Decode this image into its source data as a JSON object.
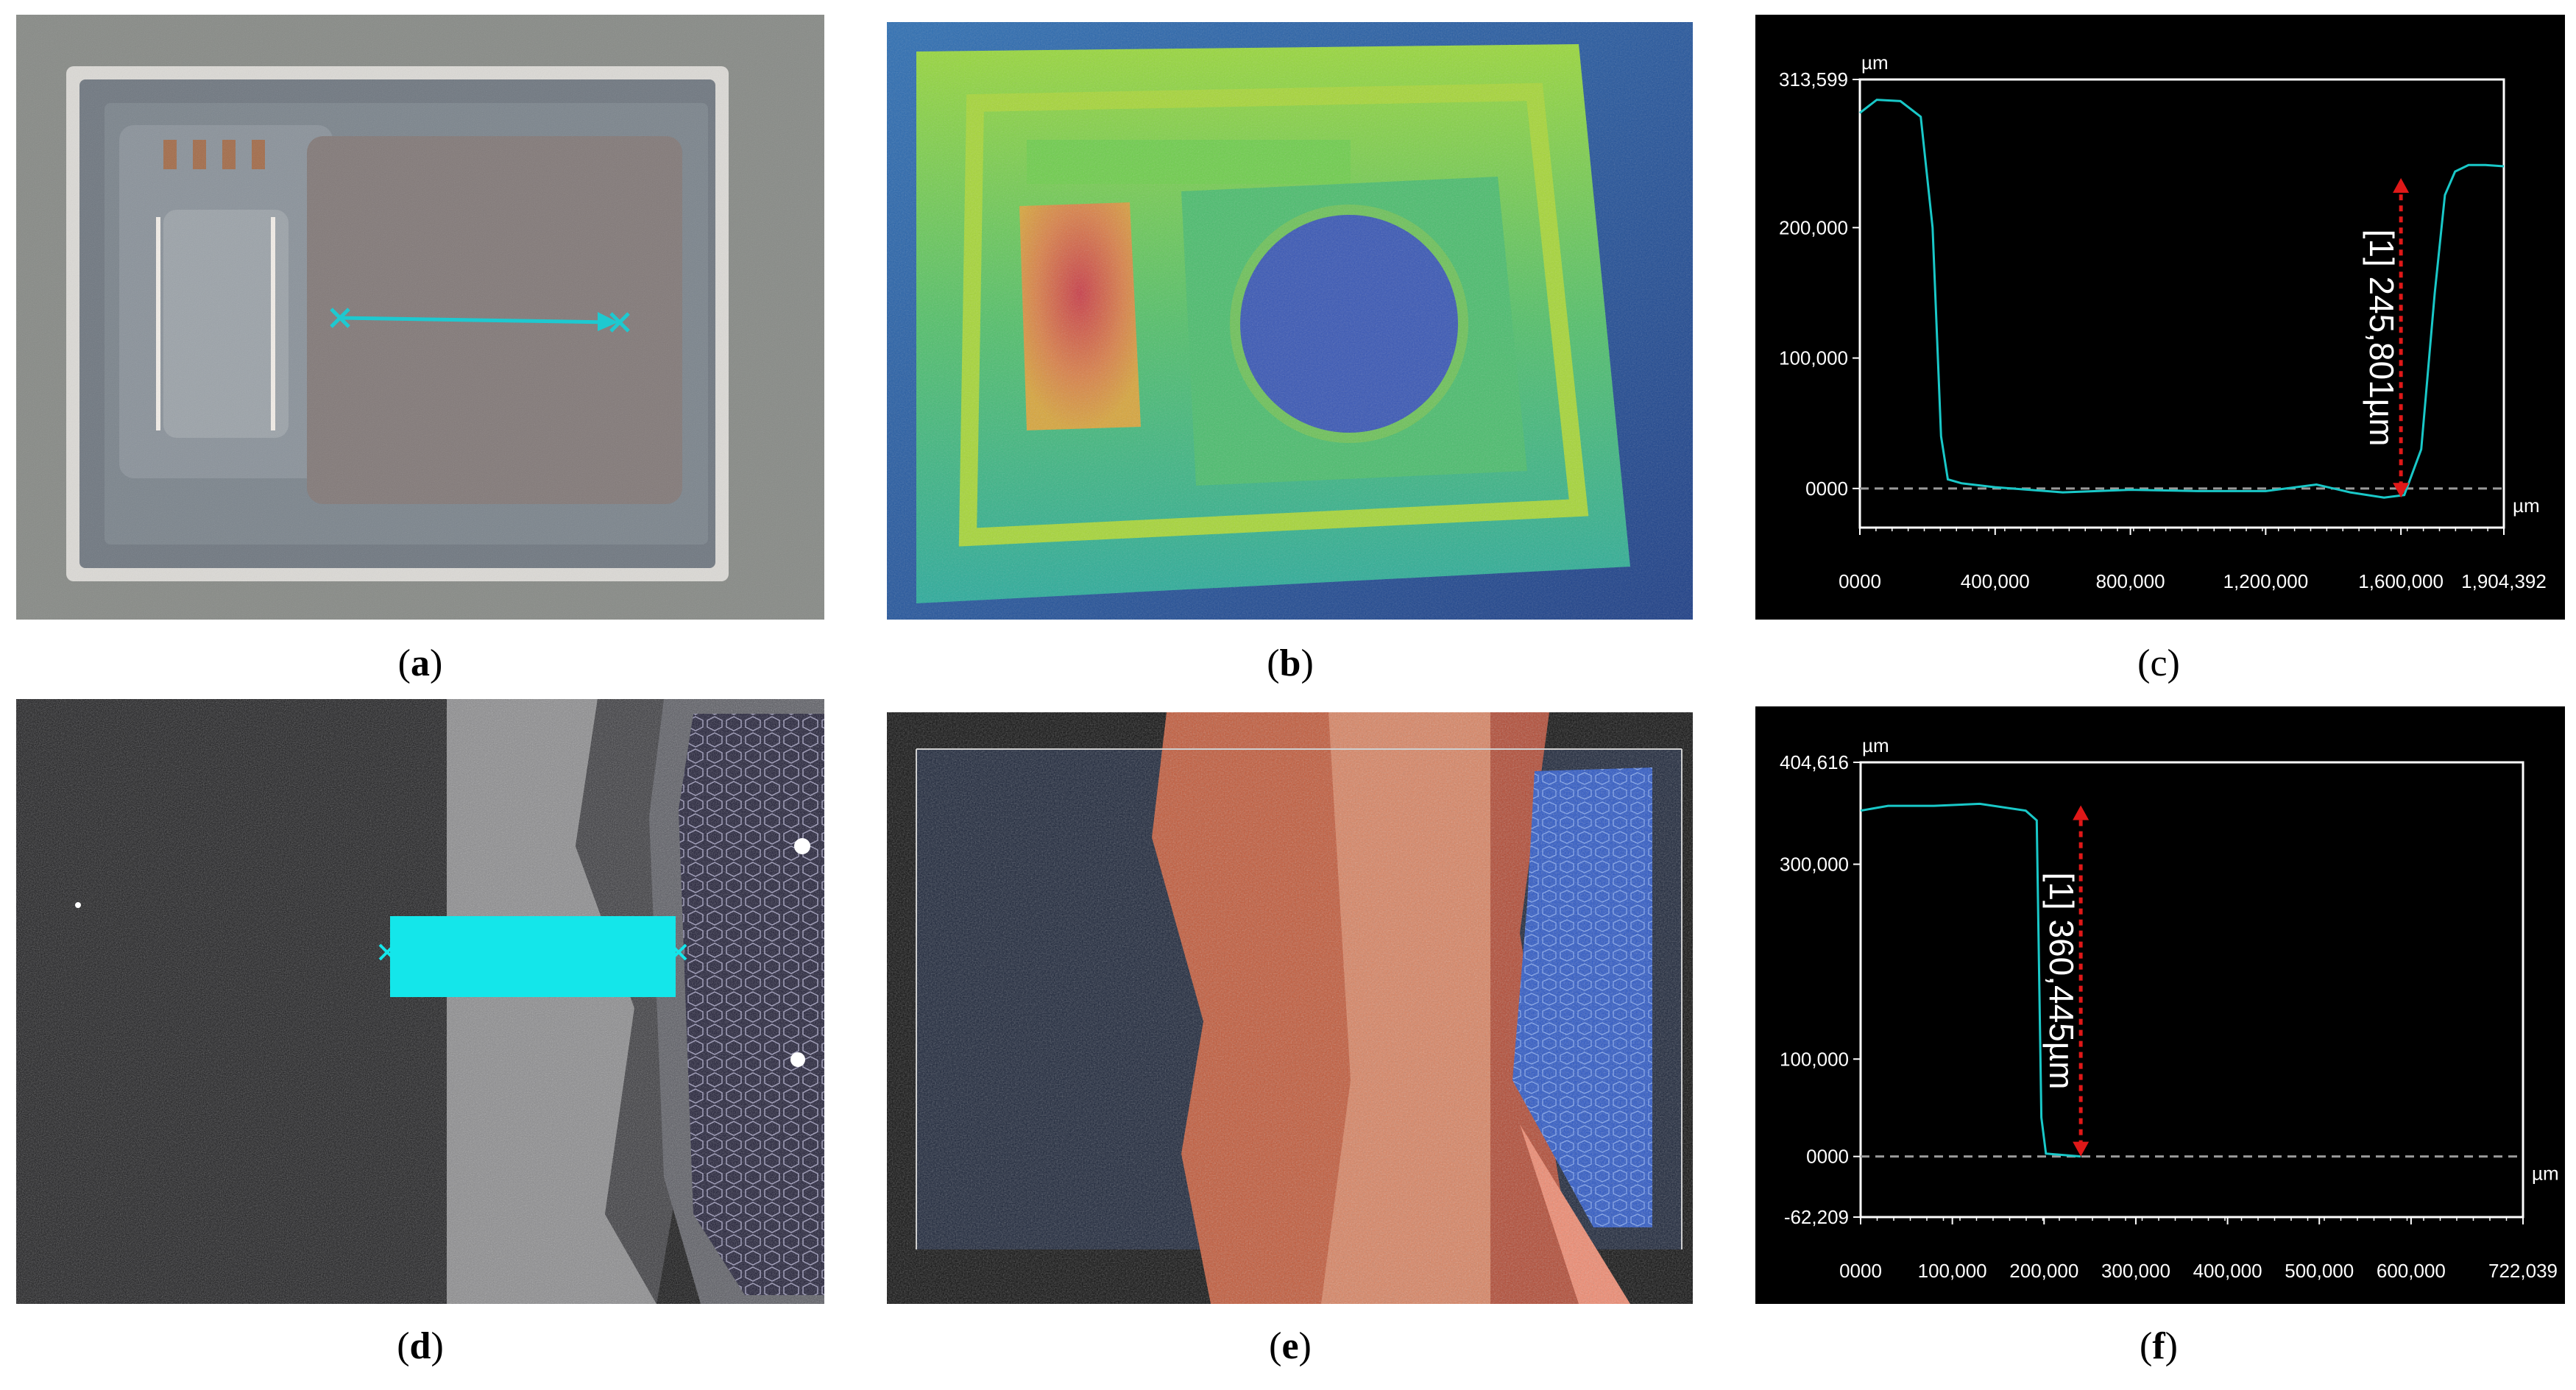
{
  "captions": {
    "a": "a",
    "b": "b",
    "c": "c",
    "d": "d",
    "e": "e",
    "f": "f"
  },
  "colors": {
    "profile": "#19c8c8",
    "marker": "#e01818",
    "axis": "#ffffff",
    "background": "#000000",
    "baseline": "#9a9a9a"
  },
  "chart_data": [
    {
      "panel": "c",
      "type": "line",
      "unit": "µm",
      "xunit": "µm",
      "xlim": [
        0,
        1904392
      ],
      "ylim": [
        -30000,
        313599
      ],
      "x_tick_labels": [
        "0000",
        "400,000",
        "800,000",
        "1,200,000",
        "1,600,000",
        "1,904,392"
      ],
      "x_tick_values": [
        0,
        400000,
        800000,
        1200000,
        1600000,
        1904392
      ],
      "y_tick_labels": [
        "313,599",
        "200,000",
        "100,000",
        "0000"
      ],
      "y_tick_values": [
        313599,
        200000,
        100000,
        0
      ],
      "series": [
        {
          "x": [
            0,
            50000,
            120000,
            180000,
            215000,
            240000,
            260000,
            300000,
            400000,
            600000,
            800000,
            1000000,
            1200000,
            1350000,
            1450000,
            1550000,
            1610000,
            1660000,
            1700000,
            1730000,
            1760000,
            1800000,
            1850000,
            1904392
          ],
          "values": [
            288000,
            298000,
            297000,
            285000,
            200000,
            40000,
            7000,
            4000,
            1000,
            -3000,
            -1000,
            -2000,
            -2000,
            3000,
            -3000,
            -7000,
            -5000,
            30000,
            150000,
            225000,
            243000,
            248000,
            248000,
            247000
          ]
        }
      ],
      "annotation": {
        "text": "[1] 245,801µm",
        "x": 1600000,
        "y1": -7000,
        "y2": 238000
      }
    },
    {
      "panel": "f",
      "type": "line",
      "unit": "µm",
      "xunit": "µm",
      "xlim": [
        0,
        722039
      ],
      "ylim": [
        -62209,
        404616
      ],
      "x_tick_labels": [
        "0000",
        "100,000",
        "200,000",
        "300,000",
        "400,000",
        "500,000",
        "600,000",
        "722,039"
      ],
      "x_tick_values": [
        0,
        100000,
        200000,
        300000,
        400000,
        500000,
        600000,
        722039
      ],
      "y_tick_labels": [
        "404,616",
        "300,000",
        "100,000",
        "0000",
        "-62,209"
      ],
      "y_tick_values": [
        404616,
        300000,
        100000,
        0,
        -62209
      ],
      "series": [
        {
          "x": [
            0,
            30000,
            80000,
            130000,
            180000,
            192000,
            197000,
            202000,
            240000
          ],
          "values": [
            355000,
            360000,
            360000,
            362000,
            355000,
            345000,
            40000,
            3000,
            0
          ]
        }
      ],
      "annotation": {
        "text": "[1] 360,445µm",
        "x": 240000,
        "y1": 0,
        "y2": 360445
      }
    }
  ]
}
